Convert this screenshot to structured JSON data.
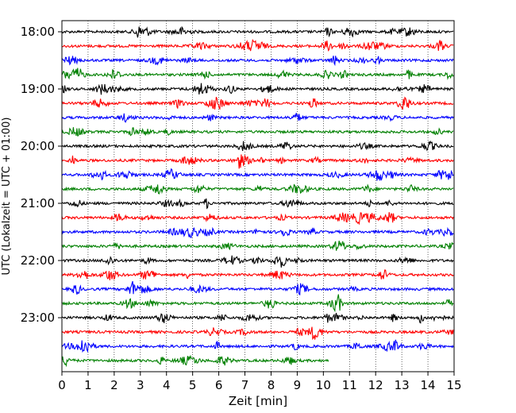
{
  "chart_data": {
    "type": "line",
    "title": "",
    "xlabel": "Zeit  [min]",
    "ylabel": "UTC (Lokalzeit = UTC + 01:00)",
    "xlim": [
      0,
      15
    ],
    "x_ticks": [
      "0",
      "1",
      "2",
      "3",
      "4",
      "5",
      "6",
      "7",
      "8",
      "9",
      "10",
      "11",
      "12",
      "13",
      "14",
      "15"
    ],
    "y_ticks": [
      "18:00",
      "19:00",
      "20:00",
      "21:00",
      "22:00",
      "23:00"
    ],
    "grid": "vertical dotted",
    "legend": "none",
    "trace_interval_min": 15,
    "color_cycle": [
      "#000000",
      "#ff0000",
      "#0000ff",
      "#008000"
    ],
    "series": [
      {
        "start": "18:00",
        "end_min": 15
      },
      {
        "start": "18:15",
        "end_min": 15
      },
      {
        "start": "18:30",
        "end_min": 15
      },
      {
        "start": "18:45",
        "end_min": 15
      },
      {
        "start": "19:00",
        "end_min": 15
      },
      {
        "start": "19:15",
        "end_min": 15
      },
      {
        "start": "19:30",
        "end_min": 15
      },
      {
        "start": "19:45",
        "end_min": 15
      },
      {
        "start": "20:00",
        "end_min": 15
      },
      {
        "start": "20:15",
        "end_min": 15
      },
      {
        "start": "20:30",
        "end_min": 15
      },
      {
        "start": "20:45",
        "end_min": 15
      },
      {
        "start": "21:00",
        "end_min": 15
      },
      {
        "start": "21:15",
        "end_min": 15
      },
      {
        "start": "21:30",
        "end_min": 15
      },
      {
        "start": "21:45",
        "end_min": 15
      },
      {
        "start": "22:00",
        "end_min": 15
      },
      {
        "start": "22:15",
        "end_min": 15
      },
      {
        "start": "22:30",
        "end_min": 15
      },
      {
        "start": "22:45",
        "end_min": 15
      },
      {
        "start": "23:00",
        "end_min": 15
      },
      {
        "start": "23:15",
        "end_min": 15
      },
      {
        "start": "23:30",
        "end_min": 15
      },
      {
        "start": "23:45",
        "end_min": 10.2
      }
    ]
  }
}
